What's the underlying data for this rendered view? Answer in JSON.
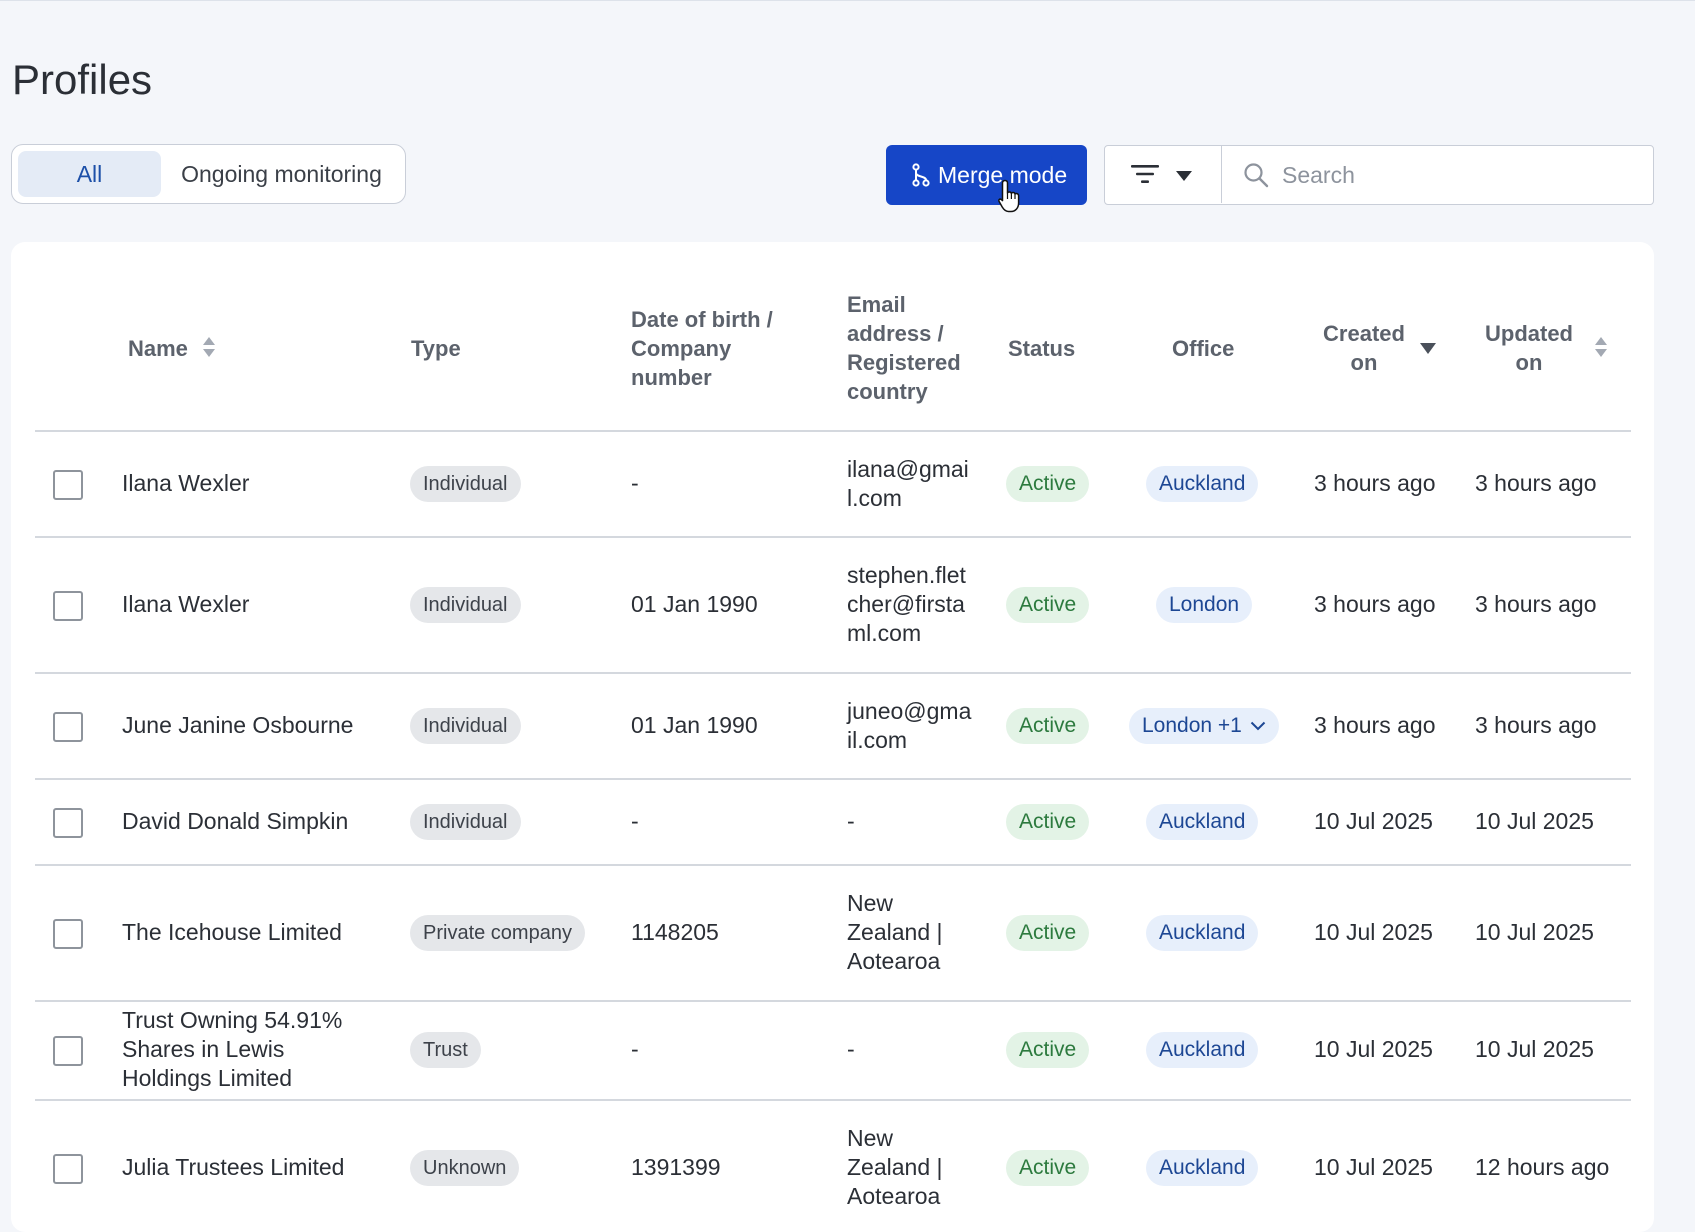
{
  "page": {
    "title": "Profiles"
  },
  "tabs": {
    "all_label": "All",
    "monitoring_label": "Ongoing monitoring"
  },
  "toolbar": {
    "merge_label": "Merge mode",
    "search_placeholder": "Search",
    "search_value": ""
  },
  "table": {
    "headers": {
      "name": "Name",
      "type": "Type",
      "dob": [
        "Date of birth /",
        "Company",
        "number"
      ],
      "email": [
        "Email",
        "address /",
        "Registered",
        "country"
      ],
      "status": "Status",
      "office": "Office",
      "created": [
        "Created",
        "on"
      ],
      "updated": [
        "Updated",
        "on"
      ]
    },
    "rows": [
      {
        "name": [
          "Ilana Wexler"
        ],
        "type": "Individual",
        "dob": "-",
        "email": [
          "ilana@gmai",
          "l.com"
        ],
        "status": "Active",
        "office": "Auckland",
        "created": "3 hours ago",
        "updated": "3 hours ago"
      },
      {
        "name": [
          "Ilana Wexler"
        ],
        "type": "Individual",
        "dob": "01 Jan 1990",
        "email": [
          "stephen.flet",
          "cher@firsta",
          "ml.com"
        ],
        "status": "Active",
        "office": "London",
        "created": "3 hours ago",
        "updated": "3 hours ago"
      },
      {
        "name": [
          "June Janine Osbourne"
        ],
        "type": "Individual",
        "dob": "01 Jan 1990",
        "email": [
          "juneo@gma",
          "il.com"
        ],
        "status": "Active",
        "office": "London +1",
        "created": "3 hours ago",
        "updated": "3 hours ago"
      },
      {
        "name": [
          "David Donald Simpkin"
        ],
        "type": "Individual",
        "dob": "-",
        "email": [
          "-"
        ],
        "status": "Active",
        "office": "Auckland",
        "created": "10 Jul 2025",
        "updated": "10 Jul 2025"
      },
      {
        "name": [
          "The Icehouse Limited"
        ],
        "type": "Private company",
        "dob": "1148205",
        "email": [
          "New",
          "Zealand |",
          "Aotearoa"
        ],
        "status": "Active",
        "office": "Auckland",
        "created": "10 Jul 2025",
        "updated": "10 Jul 2025"
      },
      {
        "name": [
          "Trust Owning 54.91%",
          "Shares in Lewis",
          "Holdings Limited"
        ],
        "type": "Trust",
        "dob": "-",
        "email": [
          "-"
        ],
        "status": "Active",
        "office": "Auckland",
        "created": "10 Jul 2025",
        "updated": "10 Jul 2025"
      },
      {
        "name": [
          "Julia Trustees Limited"
        ],
        "type": "Unknown",
        "dob": "1391399",
        "email": [
          "New",
          "Zealand |",
          "Aotearoa"
        ],
        "status": "Active",
        "office": "Auckland",
        "created": "10 Jul 2025",
        "updated": "12 hours ago"
      }
    ]
  },
  "icons": {
    "merge": "merge-icon",
    "filter": "filter-icon",
    "search": "search-icon",
    "sort": "sort-icon",
    "cursor": "hand-cursor-icon",
    "chevron": "chevron-down-icon"
  },
  "colors": {
    "primary": "#1646c7",
    "status_active": "#2c7a3e",
    "office_text": "#1d4794",
    "background": "#f4f6fa"
  }
}
